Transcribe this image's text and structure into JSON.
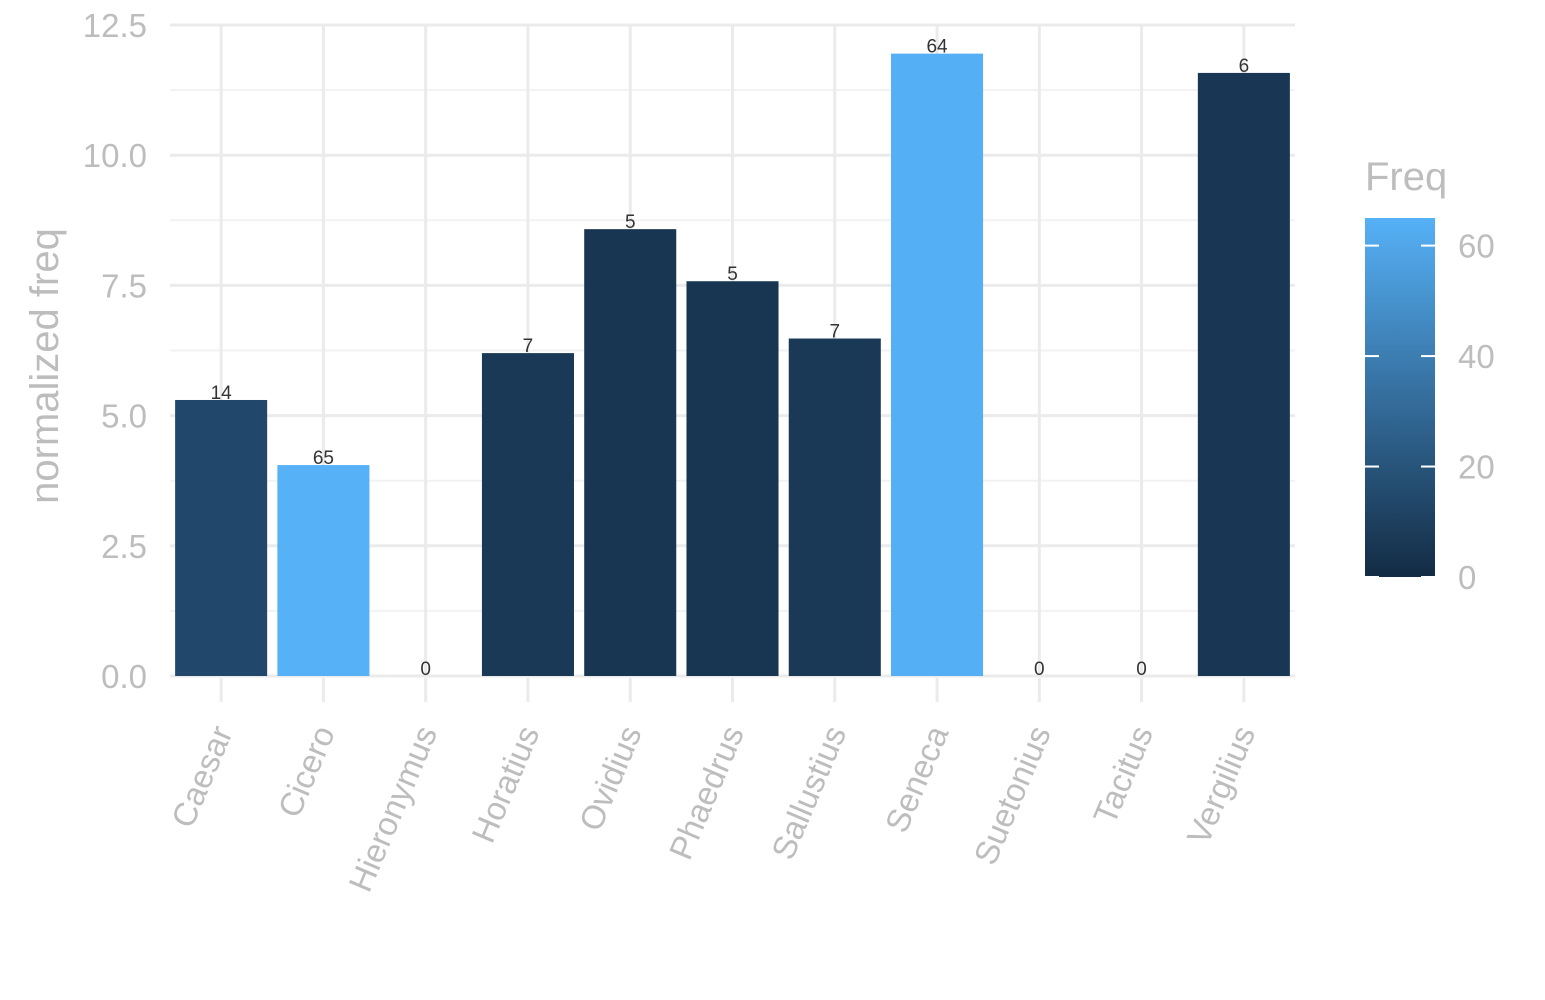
{
  "chart_data": {
    "type": "bar",
    "ylabel": "normalized freq",
    "xlabel": "",
    "categories": [
      "Caesar",
      "Cicero",
      "Hieronymus",
      "Horatius",
      "Ovidius",
      "Phaedrus",
      "Sallustius",
      "Seneca",
      "Suetonius",
      "Tacitus",
      "Vergilius"
    ],
    "values": [
      5.3,
      4.05,
      0,
      6.2,
      8.58,
      7.58,
      6.48,
      11.95,
      0,
      0,
      11.58
    ],
    "freq": [
      14,
      65,
      0,
      7,
      5,
      5,
      7,
      64,
      0,
      0,
      6
    ],
    "data_labels": [
      "14",
      "65",
      "0",
      "7",
      "5",
      "5",
      "7",
      "64",
      "0",
      "0",
      "6"
    ],
    "ylim": [
      0,
      12.5
    ],
    "yticks": [
      0,
      2.5,
      5,
      7.5,
      10,
      12.5
    ],
    "ytick_labels": [
      "0.0",
      "2.5",
      "5.0",
      "7.5",
      "10.0",
      "12.5"
    ],
    "grid": true,
    "legend": {
      "title": "Freq",
      "position": "right",
      "range": [
        0,
        65
      ],
      "ticks": [
        0,
        20,
        40,
        60
      ],
      "tick_labels": [
        "0",
        "20",
        "40",
        "60"
      ],
      "color_low": "#132b43",
      "color_high": "#56b1f7"
    }
  }
}
